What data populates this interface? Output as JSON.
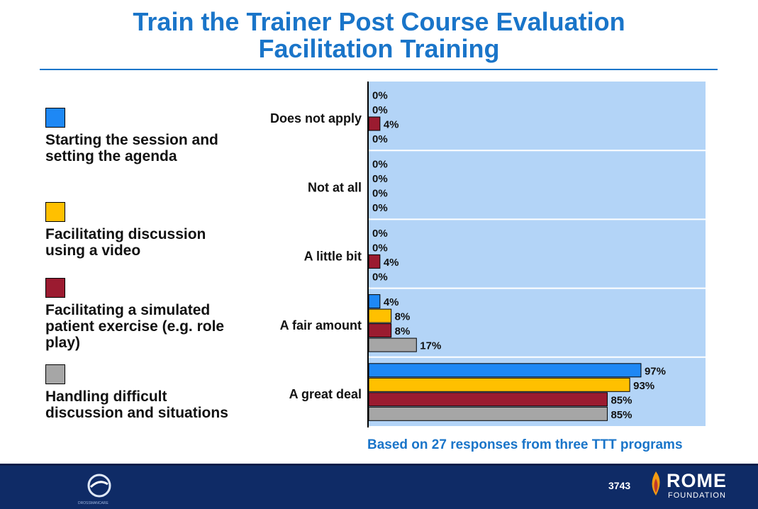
{
  "chart_data": {
    "type": "hbar",
    "title": "Train the Trainer Post Course Evaluation",
    "subtitle": "Facilitation Training",
    "categories": [
      "Does not apply",
      "Not at all",
      "A little bit",
      "A fair amount",
      "A great deal"
    ],
    "series": [
      {
        "name": "Starting the session and setting the agenda",
        "color": "#1e88f5",
        "values": [
          0,
          0,
          0,
          4,
          97
        ],
        "value_labels": [
          "0%",
          "0%",
          "0%",
          "4%",
          "97%"
        ]
      },
      {
        "name": "Facilitating discussion using a video",
        "color": "#ffc000",
        "values": [
          0,
          0,
          0,
          8,
          93
        ],
        "value_labels": [
          "0%",
          "0%",
          "0%",
          "8%",
          "93%"
        ]
      },
      {
        "name": "Facilitating a simulated patient exercise (e.g. role play)",
        "color": "#9b1b30",
        "values": [
          4,
          0,
          4,
          8,
          85
        ],
        "value_labels": [
          "4%",
          "0%",
          "4%",
          "8%",
          "85%"
        ]
      },
      {
        "name": "Handling difficult discussion and situations",
        "color": "#a6a6a6",
        "values": [
          0,
          0,
          0,
          17,
          85
        ],
        "value_labels": [
          "0%",
          "0%",
          "0%",
          "17%",
          "85%"
        ]
      }
    ],
    "xlim": [
      0,
      120
    ],
    "note": "Based on 27 responses from three TTT programs"
  },
  "footer": {
    "number": "3743",
    "logo": "ROME",
    "logo_sub": "FOUNDATION",
    "left_logo": "DROSSMANCARE"
  }
}
